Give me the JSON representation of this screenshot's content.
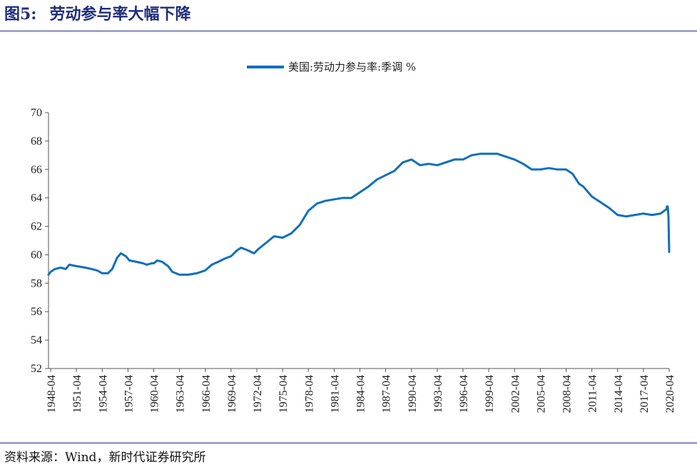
{
  "figure": {
    "number": "图5:",
    "title": "劳动参与率大幅下降",
    "source": "资料来源：Wind，新时代证券研究所"
  },
  "colors": {
    "series": "#0e6fbd",
    "rule": "#1f2d7a",
    "axis": "#555555"
  },
  "chart_data": {
    "type": "line",
    "title": "",
    "xlabel": "",
    "ylabel": "",
    "ylim": [
      52,
      70
    ],
    "yticks": [
      "52",
      "54",
      "56",
      "58",
      "60",
      "62",
      "64",
      "66",
      "68",
      "70"
    ],
    "xtick_labels": [
      "1948-04",
      "1951-04",
      "1954-04",
      "1957-04",
      "1960-04",
      "1963-04",
      "1966-04",
      "1969-04",
      "1972-04",
      "1975-04",
      "1978-04",
      "1981-04",
      "1984-04",
      "1987-04",
      "1990-04",
      "1993-04",
      "1996-04",
      "1999-04",
      "2002-04",
      "2005-04",
      "2008-04",
      "2011-04",
      "2014-04",
      "2017-04",
      "2020-04"
    ],
    "x_range": [
      "1948-01",
      "2020-04"
    ],
    "grid": false,
    "legend_position": "top-center",
    "series": [
      {
        "name": "美国:劳动力参与率:季调 %",
        "points": [
          [
            "1948-01",
            58.6
          ],
          [
            "1948-04",
            58.8
          ],
          [
            "1948-10",
            59.0
          ],
          [
            "1949-06",
            59.1
          ],
          [
            "1950-01",
            59.0
          ],
          [
            "1950-06",
            59.3
          ],
          [
            "1951-04",
            59.2
          ],
          [
            "1952-04",
            59.1
          ],
          [
            "1953-01",
            59.0
          ],
          [
            "1953-09",
            58.9
          ],
          [
            "1954-04",
            58.7
          ],
          [
            "1954-12",
            58.7
          ],
          [
            "1955-06",
            59.0
          ],
          [
            "1956-01",
            59.8
          ],
          [
            "1956-06",
            60.1
          ],
          [
            "1957-01",
            59.9
          ],
          [
            "1957-06",
            59.6
          ],
          [
            "1958-04",
            59.5
          ],
          [
            "1959-01",
            59.4
          ],
          [
            "1959-06",
            59.3
          ],
          [
            "1960-01",
            59.4
          ],
          [
            "1960-04",
            59.4
          ],
          [
            "1960-09",
            59.6
          ],
          [
            "1961-04",
            59.5
          ],
          [
            "1961-12",
            59.2
          ],
          [
            "1962-06",
            58.8
          ],
          [
            "1963-04",
            58.6
          ],
          [
            "1964-04",
            58.6
          ],
          [
            "1965-04",
            58.7
          ],
          [
            "1966-04",
            58.9
          ],
          [
            "1967-01",
            59.3
          ],
          [
            "1967-10",
            59.5
          ],
          [
            "1968-06",
            59.7
          ],
          [
            "1969-04",
            59.9
          ],
          [
            "1969-12",
            60.3
          ],
          [
            "1970-06",
            60.5
          ],
          [
            "1971-04",
            60.3
          ],
          [
            "1971-12",
            60.1
          ],
          [
            "1972-06",
            60.4
          ],
          [
            "1973-04",
            60.8
          ],
          [
            "1974-04",
            61.3
          ],
          [
            "1975-04",
            61.2
          ],
          [
            "1976-04",
            61.5
          ],
          [
            "1977-04",
            62.1
          ],
          [
            "1977-10",
            62.6
          ],
          [
            "1978-04",
            63.1
          ],
          [
            "1979-04",
            63.6
          ],
          [
            "1980-04",
            63.8
          ],
          [
            "1981-04",
            63.9
          ],
          [
            "1982-04",
            64.0
          ],
          [
            "1983-04",
            64.0
          ],
          [
            "1984-04",
            64.4
          ],
          [
            "1985-04",
            64.8
          ],
          [
            "1986-04",
            65.3
          ],
          [
            "1987-04",
            65.6
          ],
          [
            "1988-04",
            65.9
          ],
          [
            "1989-04",
            66.5
          ],
          [
            "1990-04",
            66.7
          ],
          [
            "1991-04",
            66.3
          ],
          [
            "1992-04",
            66.4
          ],
          [
            "1993-04",
            66.3
          ],
          [
            "1994-04",
            66.5
          ],
          [
            "1995-04",
            66.7
          ],
          [
            "1996-04",
            66.7
          ],
          [
            "1997-04",
            67.0
          ],
          [
            "1998-04",
            67.1
          ],
          [
            "1999-04",
            67.1
          ],
          [
            "2000-04",
            67.1
          ],
          [
            "2001-04",
            66.9
          ],
          [
            "2002-04",
            66.7
          ],
          [
            "2003-04",
            66.4
          ],
          [
            "2004-04",
            66.0
          ],
          [
            "2005-04",
            66.0
          ],
          [
            "2006-04",
            66.1
          ],
          [
            "2007-04",
            66.0
          ],
          [
            "2008-04",
            66.0
          ],
          [
            "2009-01",
            65.7
          ],
          [
            "2009-10",
            65.0
          ],
          [
            "2010-04",
            64.8
          ],
          [
            "2011-04",
            64.1
          ],
          [
            "2012-04",
            63.7
          ],
          [
            "2013-04",
            63.3
          ],
          [
            "2014-04",
            62.8
          ],
          [
            "2015-04",
            62.7
          ],
          [
            "2016-04",
            62.8
          ],
          [
            "2017-04",
            62.9
          ],
          [
            "2018-04",
            62.8
          ],
          [
            "2019-04",
            62.9
          ],
          [
            "2019-12",
            63.2
          ],
          [
            "2020-01",
            63.4
          ],
          [
            "2020-02",
            63.4
          ],
          [
            "2020-03",
            62.7
          ],
          [
            "2020-04",
            60.2
          ]
        ]
      }
    ]
  }
}
